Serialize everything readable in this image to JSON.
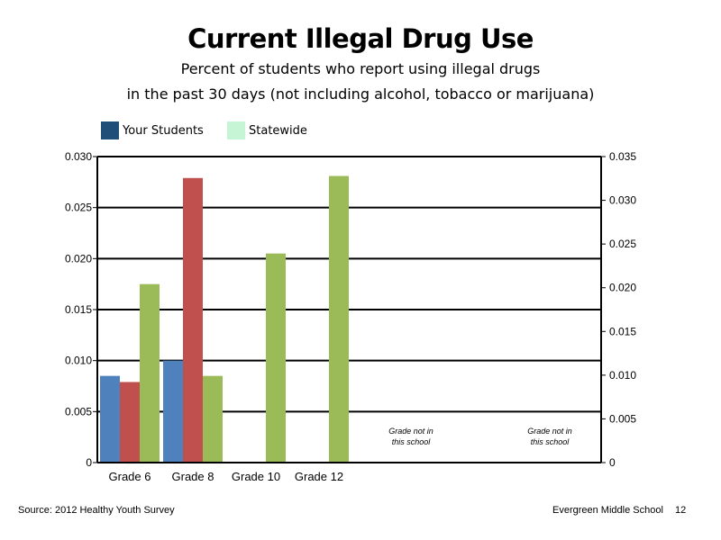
{
  "title": "Current Illegal Drug Use",
  "subtitle_line1": "Percent of students who report using illegal drugs",
  "subtitle_line2": "in the past 30 days (not including alcohol, tobacco or marijuana)",
  "legend": [
    {
      "label": "Your Students",
      "color": "#1F4E79"
    },
    {
      "label": "Statewide",
      "color": "#C6F5D6"
    }
  ],
  "footer": {
    "source": "Source: 2012 Healthy Youth Survey",
    "school": "Evergreen Middle School",
    "page_number": "12"
  },
  "chart_data": {
    "type": "bar",
    "categories": [
      "Grade 6",
      "Grade 8",
      "Grade 10",
      "Grade 12"
    ],
    "series": [
      {
        "color": "#4F81BD",
        "values": [
          0.0085,
          0.01,
          null,
          null
        ]
      },
      {
        "color": "#C0504D",
        "values": [
          0.0079,
          0.0279,
          null,
          null
        ]
      },
      {
        "color": "#9BBB59",
        "values": [
          0.0175,
          0.0085,
          0.0205,
          0.0281
        ]
      }
    ],
    "left_axis": {
      "ylim": [
        0,
        0.03
      ],
      "ticks": [
        "0",
        "0.005",
        "0.010",
        "0.015",
        "0.020",
        "0.025",
        "0.030"
      ]
    },
    "right_axis": {
      "ylim": [
        0,
        0.035
      ],
      "ticks": [
        "0",
        "0.005",
        "0.010",
        "0.015",
        "0.020",
        "0.025",
        "0.030",
        "0.035"
      ]
    },
    "grid": true,
    "annotations": [
      {
        "line1": "Grade not in",
        "line2": "this school"
      },
      {
        "line1": "Grade not in",
        "line2": "this school"
      }
    ]
  }
}
